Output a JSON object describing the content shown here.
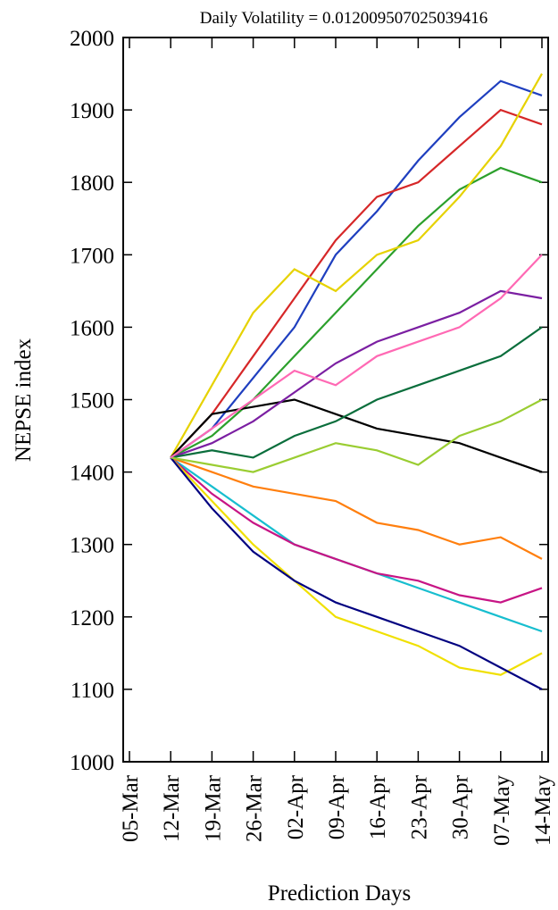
{
  "chart_data": {
    "type": "line",
    "title": "Daily Volatility = 0.012009507025039416",
    "x_label": "Prediction Days",
    "y_label": "NEPSE index",
    "categories": [
      "05-Mar",
      "12-Mar",
      "19-Mar",
      "26-Mar",
      "02-Apr",
      "09-Apr",
      "16-Apr",
      "23-Apr",
      "30-Apr",
      "07-May",
      "14-May"
    ],
    "ylim": [
      1000,
      2000
    ],
    "yticks": [
      1000,
      1100,
      1200,
      1300,
      1400,
      1500,
      1600,
      1700,
      1800,
      1900,
      2000
    ],
    "series": [
      {
        "color": "#1f3fbf",
        "values": [
          null,
          1420,
          1460,
          1530,
          1600,
          1700,
          1760,
          1830,
          1890,
          1940,
          1920
        ]
      },
      {
        "color": "#d62728",
        "values": [
          null,
          1420,
          1480,
          1560,
          1640,
          1720,
          1780,
          1800,
          1850,
          1900,
          1880
        ]
      },
      {
        "color": "#2ca02c",
        "values": [
          null,
          1420,
          1450,
          1500,
          1560,
          1620,
          1680,
          1740,
          1790,
          1820,
          1800
        ]
      },
      {
        "color": "#e6d200",
        "values": [
          null,
          1420,
          1520,
          1620,
          1680,
          1650,
          1700,
          1720,
          1780,
          1850,
          1950
        ]
      },
      {
        "color": "#000000",
        "values": [
          null,
          1420,
          1480,
          1490,
          1500,
          1480,
          1460,
          1450,
          1440,
          1420,
          1400
        ]
      },
      {
        "color": "#7b1fa2",
        "values": [
          null,
          1420,
          1440,
          1470,
          1510,
          1550,
          1580,
          1600,
          1620,
          1650,
          1640
        ]
      },
      {
        "color": "#17becf",
        "values": [
          null,
          1420,
          1380,
          1340,
          1300,
          1280,
          1260,
          1240,
          1220,
          1200,
          1180
        ]
      },
      {
        "color": "#ff7f0e",
        "values": [
          null,
          1420,
          1400,
          1380,
          1370,
          1360,
          1330,
          1320,
          1300,
          1310,
          1280
        ]
      },
      {
        "color": "#0a6e3c",
        "values": [
          null,
          1420,
          1430,
          1420,
          1450,
          1470,
          1500,
          1520,
          1540,
          1560,
          1600
        ]
      },
      {
        "color": "#c71585",
        "values": [
          null,
          1420,
          1370,
          1330,
          1300,
          1280,
          1260,
          1250,
          1230,
          1220,
          1240
        ]
      },
      {
        "color": "#f0e000",
        "values": [
          null,
          1420,
          1360,
          1300,
          1250,
          1200,
          1180,
          1160,
          1130,
          1120,
          1150
        ]
      },
      {
        "color": "#000080",
        "values": [
          null,
          1420,
          1350,
          1290,
          1250,
          1220,
          1200,
          1180,
          1160,
          1130,
          1100
        ]
      },
      {
        "color": "#9acd32",
        "values": [
          null,
          1420,
          1410,
          1400,
          1420,
          1440,
          1430,
          1410,
          1450,
          1470,
          1500
        ]
      },
      {
        "color": "#ff69b4",
        "values": [
          null,
          1420,
          1460,
          1500,
          1540,
          1520,
          1560,
          1580,
          1600,
          1640,
          1700
        ]
      }
    ]
  }
}
